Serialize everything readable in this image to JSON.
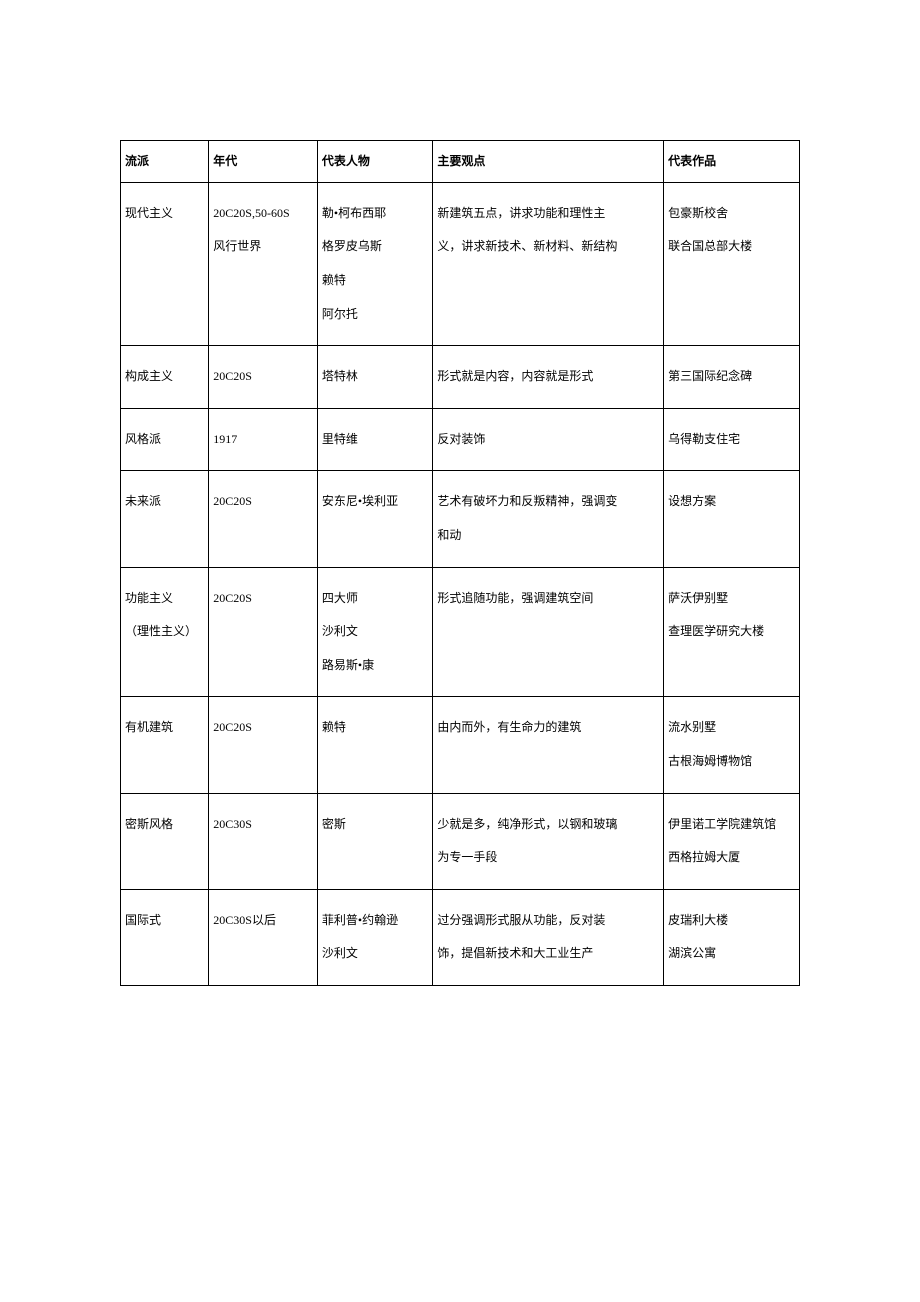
{
  "table": {
    "border_color": "#000000",
    "background_color": "#ffffff",
    "text_color": "#000000",
    "font_size": 12,
    "line_height": 2.8,
    "column_widths_pct": [
      13,
      16,
      17,
      34,
      20
    ],
    "headers": [
      "流派",
      "年代",
      "代表人物",
      "主要观点",
      "代表作品"
    ],
    "rows": [
      {
        "school": [
          "现代主义"
        ],
        "era": [
          "20C20S,50-60S",
          "风行世界"
        ],
        "people": [
          "勒•柯布西耶",
          "格罗皮乌斯",
          "赖特",
          "阿尔托"
        ],
        "viewpoint": [
          "新建筑五点，讲求功能和理性主",
          "义，讲求新技术、新材料、新结构"
        ],
        "works": [
          "包豪斯校舍",
          "联合国总部大楼"
        ]
      },
      {
        "school": [
          "构成主义"
        ],
        "era": [
          "20C20S"
        ],
        "people": [
          "塔特林"
        ],
        "viewpoint": [
          "形式就是内容，内容就是形式"
        ],
        "works": [
          "第三国际纪念碑"
        ]
      },
      {
        "school": [
          "风格派"
        ],
        "era": [
          "1917"
        ],
        "people": [
          "里特维"
        ],
        "viewpoint": [
          "反对装饰"
        ],
        "works": [
          "乌得勒支住宅"
        ]
      },
      {
        "school": [
          "未来派"
        ],
        "era": [
          "20C20S"
        ],
        "people": [
          "安东尼•埃利亚"
        ],
        "viewpoint": [
          "艺术有破坏力和反叛精神，强调变",
          "和动"
        ],
        "works": [
          "设想方案"
        ]
      },
      {
        "school": [
          "功能主义",
          "（理性主义）"
        ],
        "era": [
          "20C20S"
        ],
        "people": [
          "四大师",
          "沙利文",
          "路易斯•康"
        ],
        "viewpoint": [
          "形式追随功能，强调建筑空间"
        ],
        "works": [
          "萨沃伊别墅",
          "查理医学研究大楼"
        ]
      },
      {
        "school": [
          "有机建筑"
        ],
        "era": [
          "20C20S"
        ],
        "people": [
          "赖特"
        ],
        "viewpoint": [
          "由内而外，有生命力的建筑"
        ],
        "works": [
          "流水别墅",
          "古根海姆博物馆"
        ]
      },
      {
        "school": [
          "密斯风格"
        ],
        "era": [
          "20C30S"
        ],
        "people": [
          "密斯"
        ],
        "viewpoint": [
          "少就是多，纯净形式，以钢和玻璃",
          "为专一手段"
        ],
        "works": [
          "伊里诺工学院建筑馆",
          "西格拉姆大厦"
        ]
      },
      {
        "school": [
          "国际式"
        ],
        "era": [
          "20C30S以后"
        ],
        "people": [
          "菲利普•约翰逊",
          "沙利文"
        ],
        "viewpoint": [
          "过分强调形式服从功能，反对装",
          "饰，提倡新技术和大工业生产"
        ],
        "works": [
          "皮瑞利大楼",
          "湖滨公寓"
        ]
      }
    ]
  }
}
